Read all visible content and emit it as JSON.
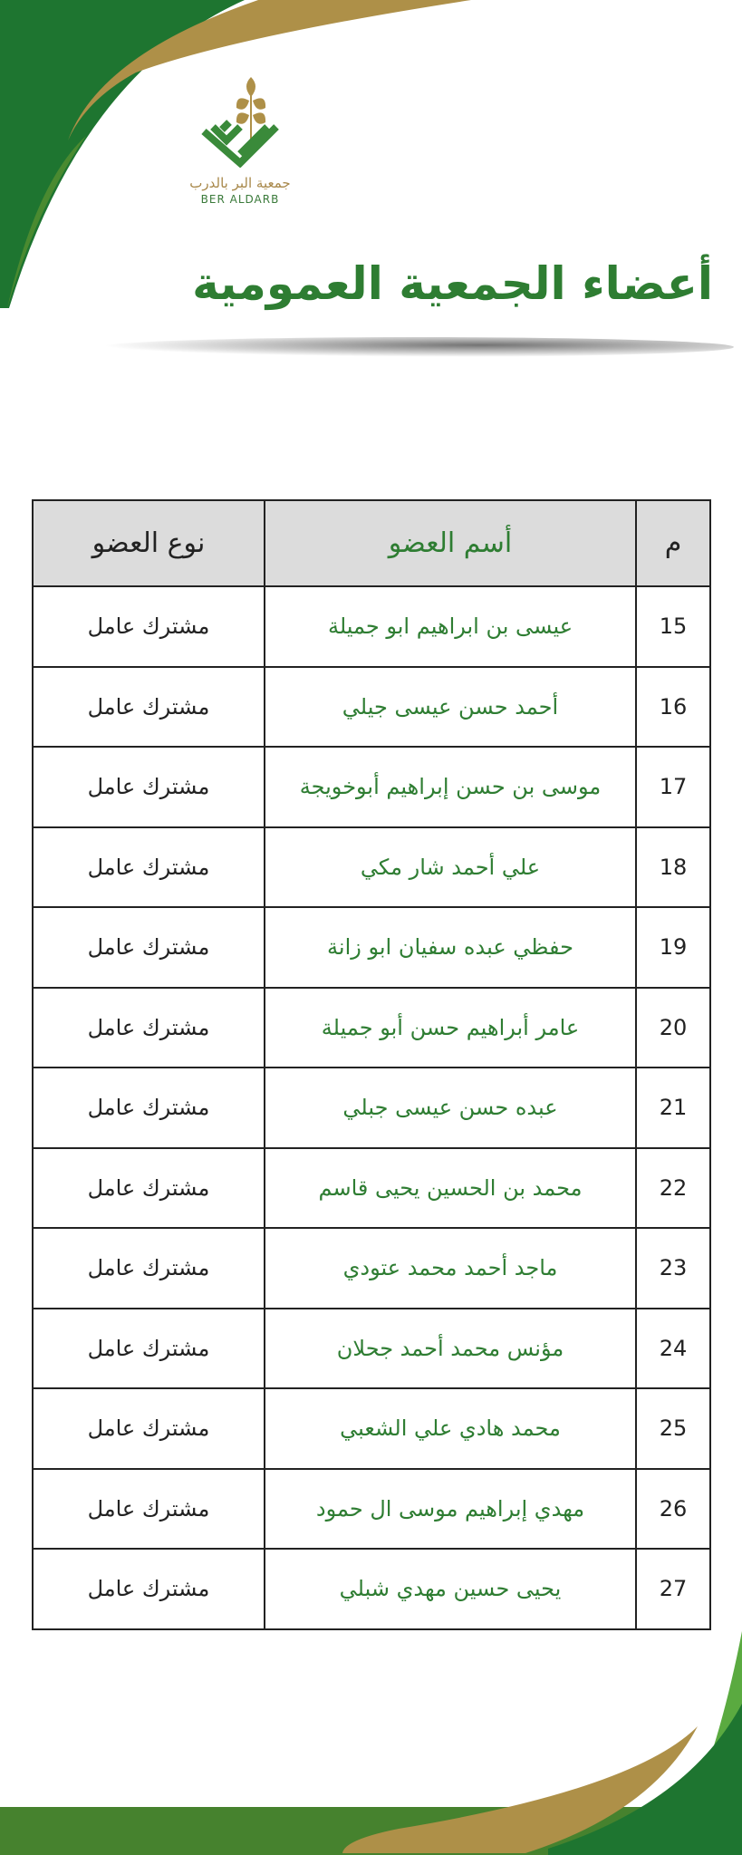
{
  "logo": {
    "arabic": "جمعية البر بالدرب",
    "english": "BER ALDARB"
  },
  "title": "أعضاء الجمعية العمومية",
  "colors": {
    "green_dark": "#1e7530",
    "green_light": "#4a8a30",
    "gold": "#ae9048",
    "name_text": "#2e7d32"
  },
  "table": {
    "headers": {
      "number": "م",
      "name": "أسم العضو",
      "type": "نوع العضو"
    },
    "rows": [
      {
        "number": "15",
        "name": "عيسى بن ابراهيم ابو جميلة",
        "type": "مشترك عامل"
      },
      {
        "number": "16",
        "name": "أحمد حسن عيسى جيلي",
        "type": "مشترك عامل"
      },
      {
        "number": "17",
        "name": "موسى بن حسن إبراهيم أبوخويجة",
        "type": "مشترك عامل"
      },
      {
        "number": "18",
        "name": "علي أحمد شار مكي",
        "type": "مشترك عامل"
      },
      {
        "number": "19",
        "name": "حفظي عبده سفيان ابو زانة",
        "type": "مشترك عامل"
      },
      {
        "number": "20",
        "name": "عامر أبراهيم حسن أبو جميلة",
        "type": "مشترك عامل"
      },
      {
        "number": "21",
        "name": "عبده حسن عيسى جبلي",
        "type": "مشترك عامل"
      },
      {
        "number": "22",
        "name": "محمد بن الحسين يحيى قاسم",
        "type": "مشترك عامل"
      },
      {
        "number": "23",
        "name": "ماجد أحمد محمد عتودي",
        "type": "مشترك عامل"
      },
      {
        "number": "24",
        "name": "مؤنس محمد أحمد جحلان",
        "type": "مشترك عامل"
      },
      {
        "number": "25",
        "name": "محمد هادي علي الشعبي",
        "type": "مشترك عامل"
      },
      {
        "number": "26",
        "name": "مهدي إبراهيم موسى ال حمود",
        "type": "مشترك عامل"
      },
      {
        "number": "27",
        "name": "يحيى حسين مهدي شبلي",
        "type": "مشترك عامل"
      }
    ]
  }
}
